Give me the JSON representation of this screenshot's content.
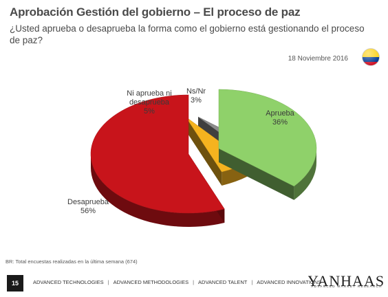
{
  "header": {
    "title": "Aprobación Gestión del gobierno – El proceso de paz",
    "subtitle": "¿Usted aprueba o desaprueba la forma como el gobierno está gestionando el proceso de paz?",
    "date": "18 Noviembre 2016"
  },
  "flag": {
    "colors": [
      "#fcd116",
      "#003893",
      "#ce1126"
    ],
    "icon": "colombia-flag-icon"
  },
  "chart_data": {
    "type": "pie",
    "title": "",
    "categories": [
      "Aprueba",
      "Ns/Nr",
      "Ni aprueba ni desaprueba",
      "Desaprueba"
    ],
    "values": [
      36,
      3,
      5,
      56
    ],
    "labels": [
      "36%",
      "3%",
      "5%",
      "56%"
    ],
    "colors": [
      "#8fd16a",
      "#8c8c8c",
      "#f5b31f",
      "#c8141b"
    ],
    "exploded": true,
    "style": "3d"
  },
  "footnote": "BR: Total encuestas realizadas en la última semana (674)",
  "footer": {
    "page_number": "15",
    "links": [
      "ADVANCED TECHNOLOGIES",
      "ADVANCED METHODOLOGIES",
      "ADVANCED TALENT",
      "ADVANCED INNOVATIONS"
    ],
    "logo_text": "YANHAAS",
    "logo_subtext": "ADVANCED MARKET RESEARCH"
  }
}
